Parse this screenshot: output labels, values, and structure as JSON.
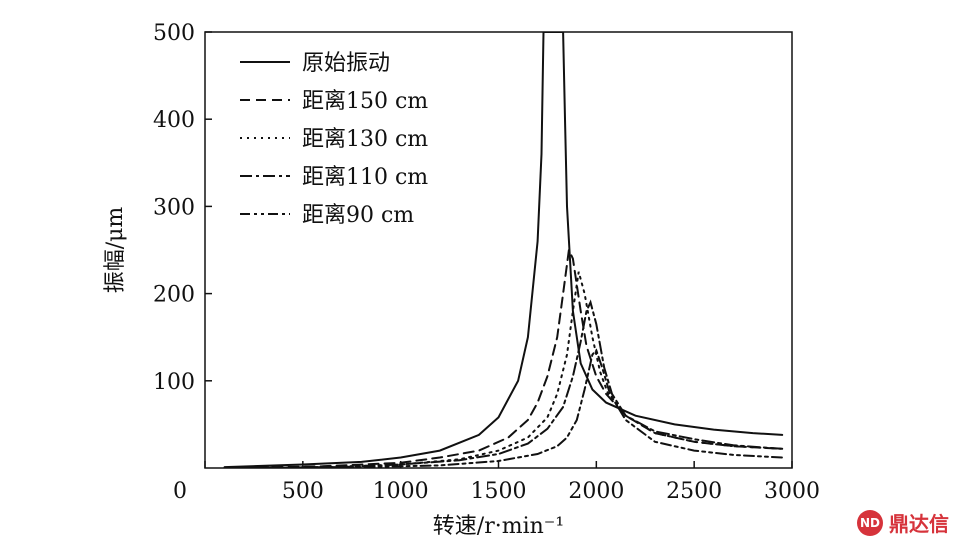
{
  "chart_data": {
    "type": "line",
    "xlabel": "转速/r·min⁻¹",
    "ylabel": "振幅/μm",
    "xlim": [
      0,
      3000
    ],
    "ylim": [
      0,
      500
    ],
    "xticks": [
      0,
      500,
      1000,
      1500,
      2000,
      2500,
      3000
    ],
    "yticks": [
      100,
      200,
      300,
      400,
      500
    ],
    "legend_position": "top-left",
    "grid": false,
    "series": [
      {
        "name": "原始振动",
        "dash": "solid",
        "points": [
          [
            100,
            1
          ],
          [
            500,
            4
          ],
          [
            800,
            7
          ],
          [
            1000,
            12
          ],
          [
            1200,
            20
          ],
          [
            1400,
            38
          ],
          [
            1500,
            58
          ],
          [
            1600,
            100
          ],
          [
            1650,
            150
          ],
          [
            1700,
            260
          ],
          [
            1720,
            360
          ],
          [
            1730,
            500
          ],
          [
            1830,
            500
          ],
          [
            1840,
            400
          ],
          [
            1850,
            300
          ],
          [
            1880,
            180
          ],
          [
            1920,
            120
          ],
          [
            1980,
            90
          ],
          [
            2050,
            75
          ],
          [
            2200,
            60
          ],
          [
            2400,
            50
          ],
          [
            2600,
            44
          ],
          [
            2800,
            40
          ],
          [
            2950,
            38
          ]
        ]
      },
      {
        "name": "距离150 cm",
        "dash": "long-dash",
        "points": [
          [
            100,
            0
          ],
          [
            600,
            2
          ],
          [
            1000,
            6
          ],
          [
            1200,
            12
          ],
          [
            1400,
            20
          ],
          [
            1550,
            35
          ],
          [
            1650,
            55
          ],
          [
            1700,
            75
          ],
          [
            1750,
            105
          ],
          [
            1800,
            150
          ],
          [
            1830,
            200
          ],
          [
            1860,
            250
          ],
          [
            1880,
            240
          ],
          [
            1920,
            180
          ],
          [
            1950,
            140
          ],
          [
            2000,
            105
          ],
          [
            2050,
            85
          ],
          [
            2150,
            60
          ],
          [
            2300,
            40
          ],
          [
            2500,
            30
          ],
          [
            2700,
            25
          ],
          [
            2950,
            22
          ]
        ]
      },
      {
        "name": "距离130 cm",
        "dash": "dotted",
        "points": [
          [
            100,
            0
          ],
          [
            600,
            1
          ],
          [
            1000,
            4
          ],
          [
            1300,
            10
          ],
          [
            1500,
            20
          ],
          [
            1650,
            35
          ],
          [
            1750,
            58
          ],
          [
            1800,
            85
          ],
          [
            1850,
            130
          ],
          [
            1880,
            180
          ],
          [
            1910,
            225
          ],
          [
            1940,
            200
          ],
          [
            1980,
            150
          ],
          [
            2020,
            110
          ],
          [
            2060,
            85
          ],
          [
            2150,
            60
          ],
          [
            2300,
            40
          ],
          [
            2500,
            30
          ],
          [
            2700,
            25
          ],
          [
            2950,
            22
          ]
        ]
      },
      {
        "name": "距离110 cm",
        "dash": "dash-dot",
        "points": [
          [
            100,
            0
          ],
          [
            700,
            1
          ],
          [
            1000,
            4
          ],
          [
            1300,
            9
          ],
          [
            1500,
            16
          ],
          [
            1650,
            28
          ],
          [
            1750,
            45
          ],
          [
            1830,
            70
          ],
          [
            1880,
            105
          ],
          [
            1920,
            145
          ],
          [
            1950,
            180
          ],
          [
            1970,
            190
          ],
          [
            2000,
            165
          ],
          [
            2040,
            115
          ],
          [
            2080,
            85
          ],
          [
            2150,
            60
          ],
          [
            2300,
            42
          ],
          [
            2500,
            33
          ],
          [
            2700,
            26
          ],
          [
            2950,
            22
          ]
        ]
      },
      {
        "name": "距离90 cm",
        "dash": "dash-dot-dot",
        "points": [
          [
            100,
            0
          ],
          [
            800,
            1
          ],
          [
            1200,
            3
          ],
          [
            1500,
            8
          ],
          [
            1700,
            16
          ],
          [
            1800,
            25
          ],
          [
            1850,
            35
          ],
          [
            1900,
            55
          ],
          [
            1940,
            90
          ],
          [
            1980,
            130
          ],
          [
            2000,
            135
          ],
          [
            2030,
            115
          ],
          [
            2070,
            85
          ],
          [
            2150,
            55
          ],
          [
            2300,
            30
          ],
          [
            2500,
            20
          ],
          [
            2700,
            15
          ],
          [
            2950,
            12
          ]
        ]
      }
    ]
  },
  "logo": {
    "badge": "ND",
    "text": "鼎达信"
  }
}
